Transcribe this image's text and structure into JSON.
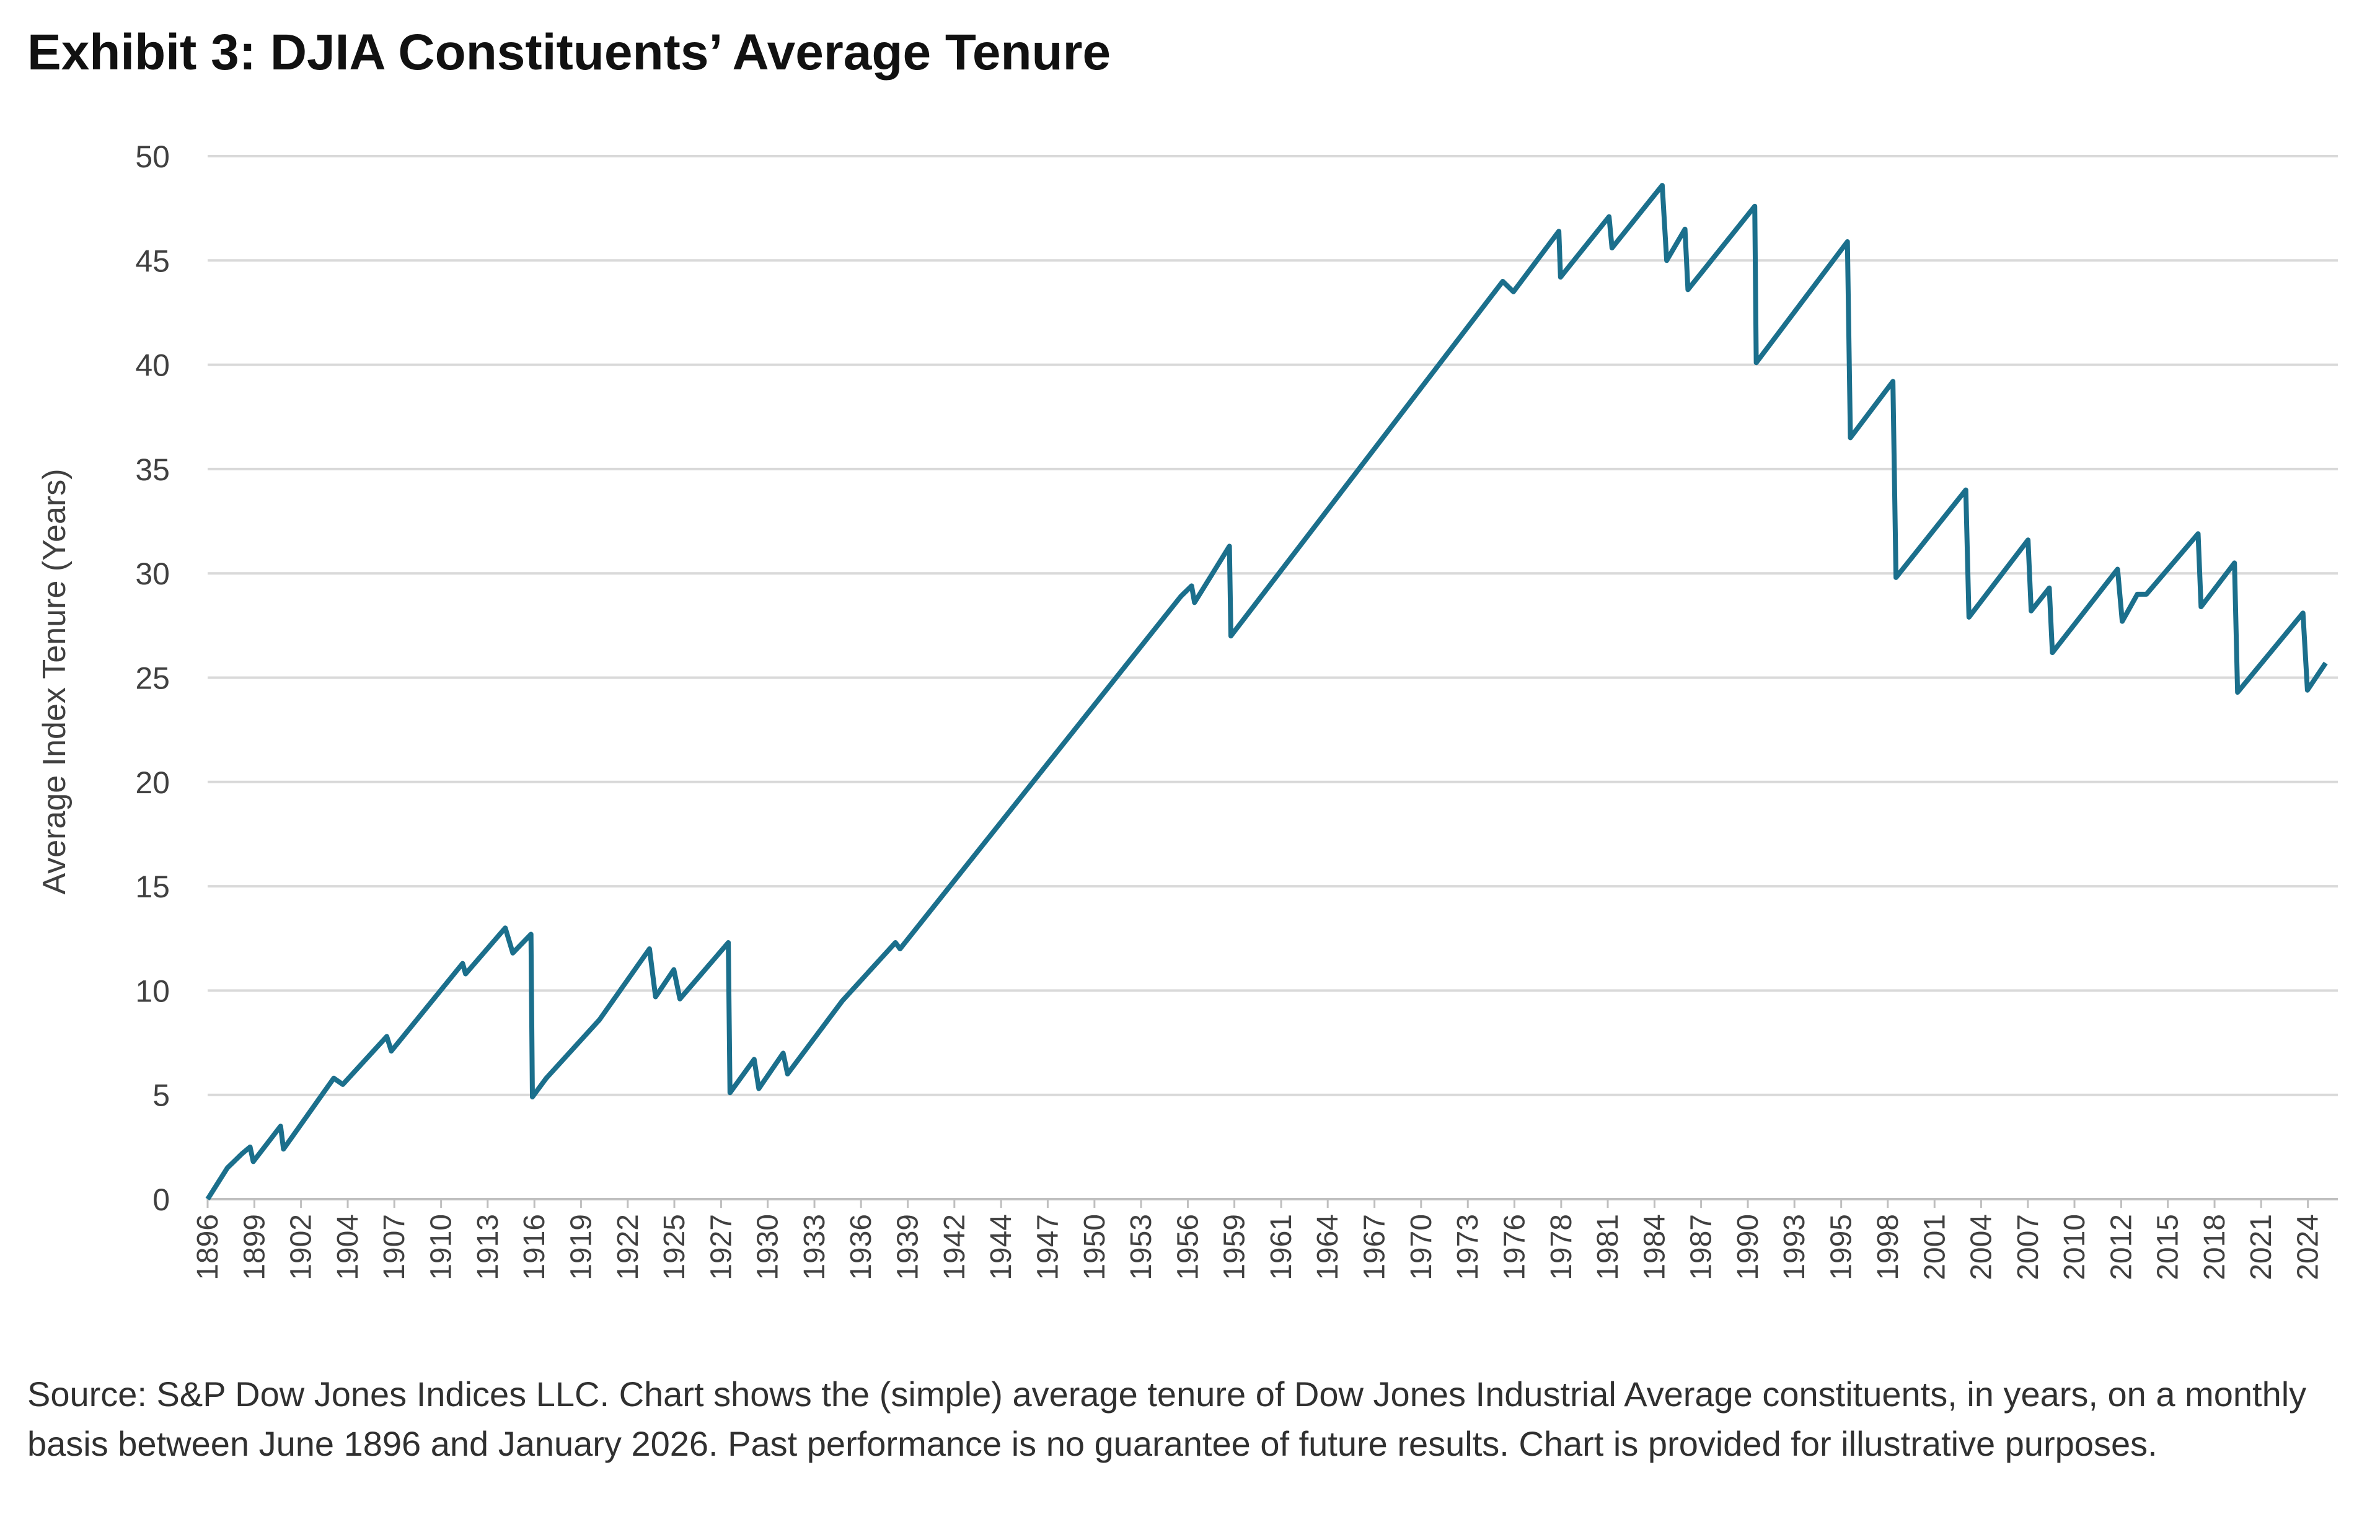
{
  "chart_data": {
    "type": "line",
    "title": "Exhibit 3: DJIA Constituents’ Average Tenure",
    "y_label": "Average Index Tenure (Years)",
    "note": "Source: S&P Dow Jones Indices LLC. Chart shows the (simple) average tenure of Dow Jones Industrial Average constituents, in years, on a monthly basis between June 1896 and January 2026. Past performance is no guarantee of future results. Chart is provided for illustrative purposes.",
    "color": "#1b6f8c",
    "grid": true,
    "ylim": [
      0,
      50
    ],
    "yticks": [
      0,
      5,
      10,
      15,
      20,
      25,
      30,
      35,
      40,
      45,
      50
    ],
    "xlim": [
      1896.4,
      2025.8
    ],
    "xticks": [
      {
        "value": 1896.4,
        "label": "1896"
      },
      {
        "value": 1899.24,
        "label": "1899"
      },
      {
        "value": 1902.07,
        "label": "1902"
      },
      {
        "value": 1904.91,
        "label": "1904"
      },
      {
        "value": 1907.74,
        "label": "1907"
      },
      {
        "value": 1910.58,
        "label": "1910"
      },
      {
        "value": 1913.41,
        "label": "1913"
      },
      {
        "value": 1916.25,
        "label": "1916"
      },
      {
        "value": 1919.08,
        "label": "1919"
      },
      {
        "value": 1921.92,
        "label": "1922"
      },
      {
        "value": 1924.75,
        "label": "1925"
      },
      {
        "value": 1927.59,
        "label": "1927"
      },
      {
        "value": 1930.42,
        "label": "1930"
      },
      {
        "value": 1933.26,
        "label": "1933"
      },
      {
        "value": 1936.09,
        "label": "1936"
      },
      {
        "value": 1938.93,
        "label": "1939"
      },
      {
        "value": 1941.76,
        "label": "1942"
      },
      {
        "value": 1944.6,
        "label": "1944"
      },
      {
        "value": 1947.43,
        "label": "1947"
      },
      {
        "value": 1950.27,
        "label": "1950"
      },
      {
        "value": 1953.1,
        "label": "1953"
      },
      {
        "value": 1955.94,
        "label": "1956"
      },
      {
        "value": 1958.77,
        "label": "1959"
      },
      {
        "value": 1961.61,
        "label": "1961"
      },
      {
        "value": 1964.44,
        "label": "1964"
      },
      {
        "value": 1967.28,
        "label": "1967"
      },
      {
        "value": 1970.11,
        "label": "1970"
      },
      {
        "value": 1972.95,
        "label": "1973"
      },
      {
        "value": 1975.78,
        "label": "1976"
      },
      {
        "value": 1978.62,
        "label": "1978"
      },
      {
        "value": 1981.45,
        "label": "1981"
      },
      {
        "value": 1984.29,
        "label": "1984"
      },
      {
        "value": 1987.12,
        "label": "1987"
      },
      {
        "value": 1989.96,
        "label": "1990"
      },
      {
        "value": 1992.79,
        "label": "1993"
      },
      {
        "value": 1995.63,
        "label": "1995"
      },
      {
        "value": 1998.46,
        "label": "1998"
      },
      {
        "value": 2001.3,
        "label": "2001"
      },
      {
        "value": 2004.13,
        "label": "2004"
      },
      {
        "value": 2006.97,
        "label": "2007"
      },
      {
        "value": 2009.8,
        "label": "2010"
      },
      {
        "value": 2012.64,
        "label": "2012"
      },
      {
        "value": 2015.47,
        "label": "2015"
      },
      {
        "value": 2018.31,
        "label": "2018"
      },
      {
        "value": 2021.14,
        "label": "2021"
      },
      {
        "value": 2023.98,
        "label": "2024"
      }
    ],
    "x": [
      1896.4,
      1897.6,
      1898.52,
      1898.98,
      1899.17,
      1900.83,
      1901.01,
      1904.06,
      1904.61,
      1907.28,
      1907.56,
      1911.89,
      1912.07,
      1914.48,
      1914.94,
      1916.04,
      1916.13,
      1916.97,
      1920.2,
      1923.24,
      1923.61,
      1924.72,
      1925.09,
      1928.03,
      1928.13,
      1929.6,
      1929.88,
      1931.36,
      1931.63,
      1934.95,
      1938.18,
      1938.46,
      1955.52,
      1956.17,
      1956.35,
      1958.47,
      1958.56,
      1975.07,
      1975.72,
      1978.48,
      1978.58,
      1981.53,
      1981.71,
      1984.76,
      1985.03,
      1986.14,
      1986.32,
      1990.38,
      1990.47,
      1996.01,
      1996.19,
      1998.77,
      1998.96,
      2003.2,
      2003.39,
      2006.98,
      2007.17,
      2008.27,
      2008.46,
      2012.42,
      2012.7,
      2013.62,
      2014.17,
      2017.31,
      2017.49,
      2019.52,
      2019.71,
      2023.68,
      2023.95,
      2025.06
    ],
    "values": [
      0,
      1.5,
      2.2,
      2.5,
      1.8,
      3.5,
      2.4,
      5.8,
      5.5,
      7.8,
      7.1,
      11.3,
      10.8,
      13.0,
      11.8,
      12.7,
      4.9,
      5.8,
      8.6,
      12.0,
      9.7,
      11.0,
      9.6,
      12.3,
      5.1,
      6.7,
      5.3,
      7.0,
      6.0,
      9.5,
      12.3,
      12.0,
      28.9,
      29.4,
      28.6,
      31.3,
      27.0,
      44.0,
      43.5,
      46.4,
      44.2,
      47.1,
      45.6,
      48.6,
      45.0,
      46.5,
      43.6,
      47.6,
      40.1,
      45.9,
      36.5,
      39.2,
      29.8,
      34.0,
      27.9,
      31.6,
      28.2,
      29.3,
      26.2,
      30.2,
      27.7,
      29.0,
      29.0,
      31.9,
      28.4,
      30.5,
      24.3,
      28.1,
      24.4,
      25.7
    ]
  }
}
